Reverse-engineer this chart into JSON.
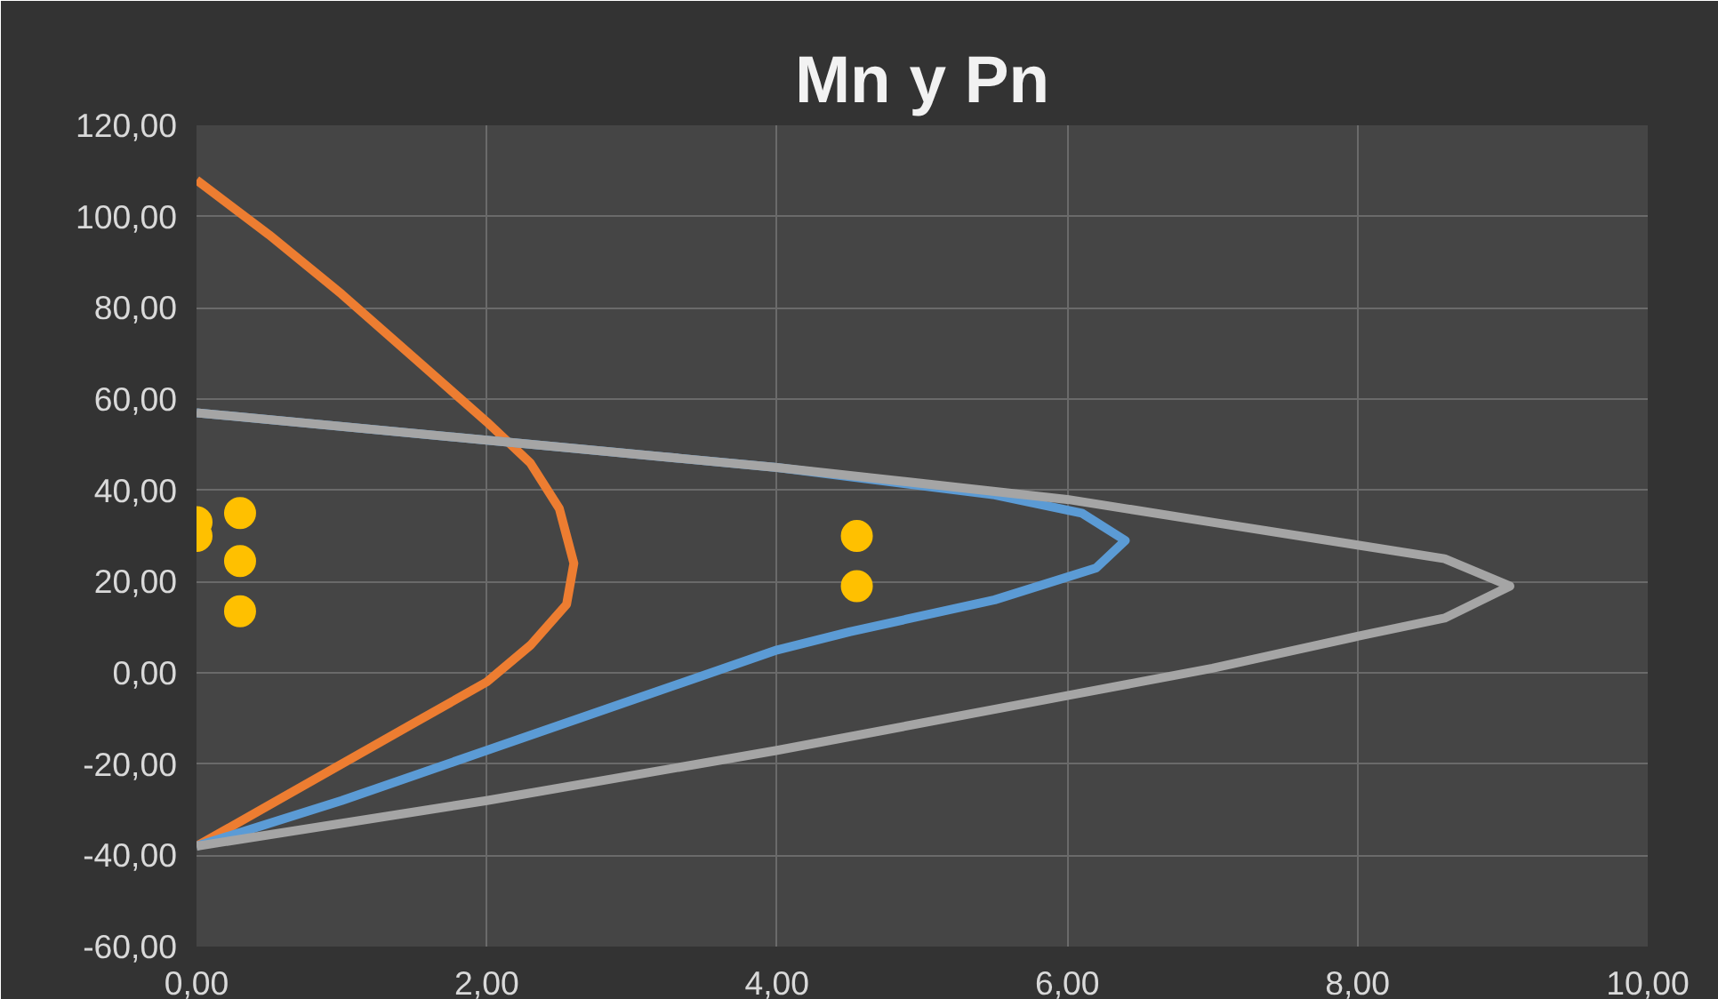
{
  "chart_data": {
    "type": "line",
    "title": "Mn y Pn",
    "xlim": [
      0,
      10
    ],
    "ylim": [
      -60,
      120
    ],
    "xticks": [
      {
        "value": 0,
        "label": "0,00"
      },
      {
        "value": 2,
        "label": "2,00"
      },
      {
        "value": 4,
        "label": "4,00"
      },
      {
        "value": 6,
        "label": "6,00"
      },
      {
        "value": 8,
        "label": "8,00"
      },
      {
        "value": 10,
        "label": "10,00"
      }
    ],
    "yticks": [
      {
        "value": -60,
        "label": "-60,00"
      },
      {
        "value": -40,
        "label": "-40,00"
      },
      {
        "value": -20,
        "label": "-20,00"
      },
      {
        "value": 0,
        "label": "0,00"
      },
      {
        "value": 20,
        "label": "20,00"
      },
      {
        "value": 40,
        "label": "40,00"
      },
      {
        "value": 60,
        "label": "60,00"
      },
      {
        "value": 80,
        "label": "80,00"
      },
      {
        "value": 100,
        "label": "100,00"
      },
      {
        "value": 120,
        "label": "120,00"
      }
    ],
    "grid": true,
    "series": [
      {
        "color": "#ed7d31",
        "x": [
          0,
          0.5,
          1,
          1.5,
          2,
          2.3,
          2.5,
          2.6,
          2.55,
          2.3,
          2,
          1.5,
          1,
          0.5,
          0
        ],
        "values": [
          108,
          96,
          83,
          69,
          55,
          46,
          36,
          24,
          15,
          6,
          -2,
          -11,
          -20,
          -29,
          -38
        ]
      },
      {
        "color": "#5b9bd5",
        "x": [
          0,
          2,
          4,
          5.5,
          6.1,
          6.4,
          6.2,
          5.5,
          4.5,
          4,
          3,
          2,
          1,
          0
        ],
        "values": [
          57,
          51,
          45,
          39,
          35,
          29,
          23,
          16,
          9,
          5,
          -6,
          -17,
          -28,
          -38
        ]
      },
      {
        "color": "#a5a5a5",
        "x": [
          0,
          2,
          4,
          6,
          7,
          8,
          8.6,
          9.05,
          8.6,
          8,
          7,
          6,
          4,
          2,
          0
        ],
        "values": [
          57,
          51,
          45,
          38,
          33,
          28,
          25,
          19,
          12,
          8,
          1,
          -5,
          -17,
          -28,
          -38
        ]
      },
      {
        "type": "scatter",
        "color": "#ffc000",
        "marker": "circle",
        "x": [
          0,
          0,
          0.3,
          0.3,
          0.3,
          4.55,
          4.55
        ],
        "values": [
          33,
          30,
          35,
          24.5,
          13.5,
          30,
          19
        ]
      }
    ]
  }
}
